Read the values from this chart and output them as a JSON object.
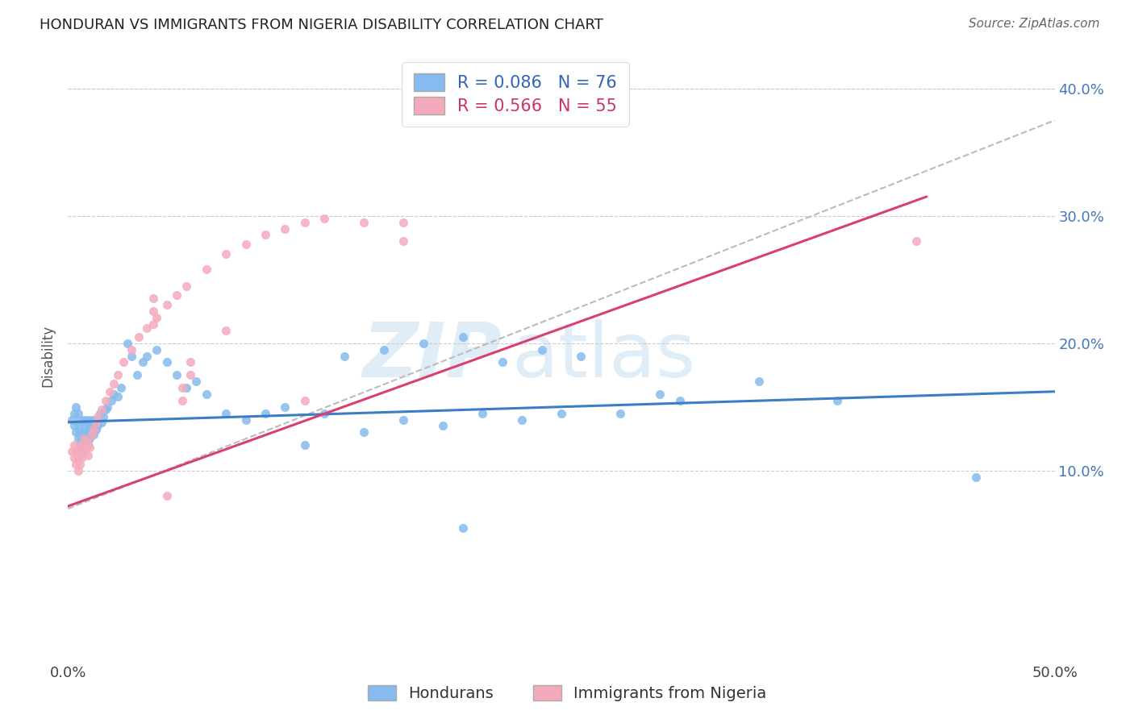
{
  "title": "HONDURAN VS IMMIGRANTS FROM NIGERIA DISABILITY CORRELATION CHART",
  "source": "Source: ZipAtlas.com",
  "ylabel": "Disability",
  "honduran_color": "#85BBEE",
  "honduran_edge_color": "#85BBEE",
  "nigeria_color": "#F5AABB",
  "nigeria_edge_color": "#F5AABB",
  "honduran_line_color": "#3B7EC5",
  "nigeria_line_color": "#D94070",
  "grey_dash_color": "#BBBBBB",
  "R_honduran": 0.086,
  "N_honduran": 76,
  "R_nigeria": 0.566,
  "N_nigeria": 55,
  "legend_label_1": "Hondurans",
  "legend_label_2": "Immigrants from Nigeria",
  "watermark": "ZIPatlas",
  "xlim": [
    0.0,
    0.5
  ],
  "ylim": [
    -0.05,
    0.43
  ],
  "ytick_vals": [
    0.1,
    0.2,
    0.3,
    0.4
  ],
  "ytick_labels": [
    "10.0%",
    "20.0%",
    "30.0%",
    "40.0%"
  ],
  "honduran_line_x": [
    0.0,
    0.5
  ],
  "honduran_line_y": [
    0.138,
    0.162
  ],
  "nigeria_line_x": [
    0.0,
    0.435
  ],
  "nigeria_line_y": [
    0.072,
    0.315
  ],
  "grey_line_x": [
    0.0,
    0.5
  ],
  "grey_line_y": [
    0.07,
    0.375
  ],
  "hon_x": [
    0.002,
    0.003,
    0.003,
    0.004,
    0.004,
    0.005,
    0.005,
    0.005,
    0.006,
    0.006,
    0.006,
    0.007,
    0.007,
    0.008,
    0.008,
    0.008,
    0.009,
    0.009,
    0.01,
    0.01,
    0.01,
    0.011,
    0.011,
    0.012,
    0.012,
    0.013,
    0.013,
    0.014,
    0.015,
    0.015,
    0.016,
    0.017,
    0.018,
    0.019,
    0.02,
    0.022,
    0.023,
    0.025,
    0.027,
    0.03,
    0.032,
    0.035,
    0.038,
    0.04,
    0.045,
    0.05,
    0.055,
    0.06,
    0.065,
    0.07,
    0.08,
    0.09,
    0.1,
    0.11,
    0.12,
    0.13,
    0.15,
    0.17,
    0.19,
    0.21,
    0.23,
    0.25,
    0.28,
    0.31,
    0.35,
    0.39,
    0.14,
    0.16,
    0.18,
    0.2,
    0.46,
    0.3,
    0.26,
    0.24,
    0.22,
    0.2
  ],
  "hon_y": [
    0.14,
    0.135,
    0.145,
    0.13,
    0.15,
    0.125,
    0.135,
    0.145,
    0.12,
    0.13,
    0.14,
    0.115,
    0.125,
    0.12,
    0.13,
    0.14,
    0.125,
    0.135,
    0.12,
    0.13,
    0.14,
    0.125,
    0.135,
    0.13,
    0.14,
    0.128,
    0.138,
    0.132,
    0.14,
    0.135,
    0.145,
    0.138,
    0.142,
    0.148,
    0.15,
    0.155,
    0.16,
    0.158,
    0.165,
    0.2,
    0.19,
    0.175,
    0.185,
    0.19,
    0.195,
    0.185,
    0.175,
    0.165,
    0.17,
    0.16,
    0.145,
    0.14,
    0.145,
    0.15,
    0.12,
    0.145,
    0.13,
    0.14,
    0.135,
    0.145,
    0.14,
    0.145,
    0.145,
    0.155,
    0.17,
    0.155,
    0.19,
    0.195,
    0.2,
    0.205,
    0.095,
    0.16,
    0.19,
    0.195,
    0.185,
    0.055
  ],
  "nig_x": [
    0.002,
    0.003,
    0.003,
    0.004,
    0.004,
    0.005,
    0.005,
    0.006,
    0.006,
    0.007,
    0.007,
    0.008,
    0.008,
    0.009,
    0.01,
    0.01,
    0.011,
    0.012,
    0.013,
    0.014,
    0.015,
    0.017,
    0.019,
    0.021,
    0.023,
    0.025,
    0.028,
    0.032,
    0.036,
    0.04,
    0.045,
    0.05,
    0.055,
    0.06,
    0.07,
    0.08,
    0.09,
    0.1,
    0.11,
    0.12,
    0.13,
    0.15,
    0.17,
    0.043,
    0.043,
    0.043,
    0.058,
    0.058,
    0.062,
    0.062,
    0.08,
    0.17,
    0.43,
    0.12,
    0.05
  ],
  "nig_y": [
    0.115,
    0.11,
    0.12,
    0.105,
    0.115,
    0.1,
    0.11,
    0.105,
    0.115,
    0.11,
    0.12,
    0.115,
    0.125,
    0.118,
    0.112,
    0.122,
    0.118,
    0.128,
    0.132,
    0.138,
    0.142,
    0.148,
    0.155,
    0.162,
    0.168,
    0.175,
    0.185,
    0.195,
    0.205,
    0.212,
    0.22,
    0.23,
    0.238,
    0.245,
    0.258,
    0.27,
    0.278,
    0.285,
    0.29,
    0.295,
    0.298,
    0.295,
    0.295,
    0.215,
    0.225,
    0.235,
    0.155,
    0.165,
    0.175,
    0.185,
    0.21,
    0.28,
    0.28,
    0.155,
    0.08
  ]
}
